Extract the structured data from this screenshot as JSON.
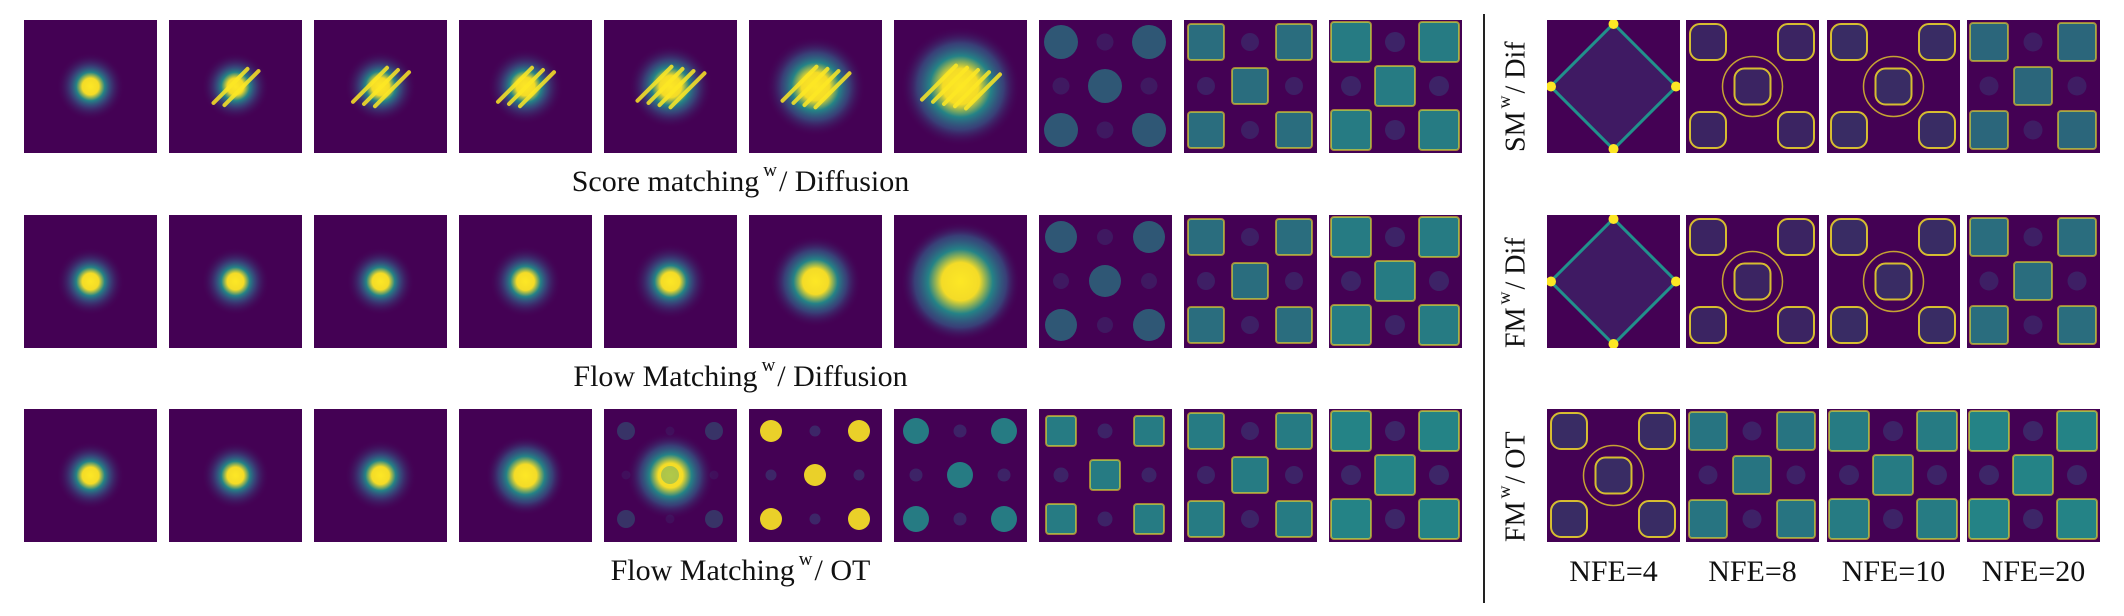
{
  "captions": {
    "score_matching_diffusion": {
      "a": "Score matching",
      "w": "w",
      "b": "/ Diffusion"
    },
    "flow_matching_diffusion": {
      "a": "Flow Matching",
      "w": "w",
      "b": "/ Diffusion"
    },
    "flow_matching_ot": {
      "a": "Flow Matching",
      "w": "w",
      "b": "/ OT"
    }
  },
  "side_labels": {
    "sm_dif": {
      "a": "SM",
      "w": "w",
      "b": "/ Dif"
    },
    "fm_dif": {
      "a": "FM",
      "w": "w",
      "b": "/ Dif"
    },
    "fm_ot": {
      "a": "FM",
      "w": "w",
      "b": "/ OT"
    }
  },
  "nfe_labels": [
    "NFE=4",
    "NFE=8",
    "NFE=10",
    "NFE=20"
  ],
  "colormap": {
    "background": "#440154",
    "low": "#31688e",
    "mid": "#21918c",
    "high": "#fde725"
  }
}
